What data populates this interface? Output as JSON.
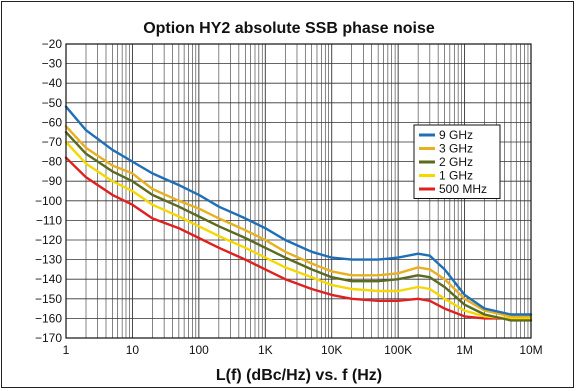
{
  "chart_data": {
    "type": "line",
    "title": "Option HY2 absolute SSB phase noise",
    "xlabel": "L(f) (dBc/Hz) vs. f (Hz)",
    "ylabel": "",
    "x_scale": "log",
    "xlim": [
      1,
      10000000
    ],
    "ylim": [
      -170,
      -20
    ],
    "grid": true,
    "legend_position": "right",
    "x_tick_values": [
      1,
      10,
      100,
      1000,
      10000,
      100000,
      1000000,
      10000000
    ],
    "x_tick_labels": [
      "1",
      "10",
      "100",
      "1K",
      "10K",
      "100K",
      "1M",
      "10M"
    ],
    "y_ticks": [
      -20,
      -30,
      -40,
      -50,
      -60,
      -70,
      -80,
      -90,
      -100,
      -110,
      -120,
      -130,
      -140,
      -150,
      -160,
      -170
    ],
    "x": [
      1,
      2,
      5,
      10,
      20,
      50,
      100,
      200,
      500,
      1000,
      2000,
      5000,
      10000,
      20000,
      50000,
      100000,
      200000,
      300000,
      500000,
      1000000,
      2000000,
      5000000,
      10000000
    ],
    "series": [
      {
        "name": "9 GHz",
        "color": "#1f6fb8",
        "values": [
          -52,
          -64,
          -74,
          -80,
          -86,
          -92,
          -97,
          -103,
          -109,
          -114,
          -120,
          -126,
          -129,
          -130,
          -130,
          -129,
          -127,
          -128,
          -135,
          -148,
          -155,
          -158,
          -158
        ]
      },
      {
        "name": "3 GHz",
        "color": "#e8b020",
        "values": [
          -62,
          -73,
          -82,
          -86,
          -94,
          -100,
          -104,
          -109,
          -115,
          -120,
          -126,
          -132,
          -136,
          -138,
          -138,
          -137,
          -134,
          -135,
          -140,
          -150,
          -156,
          -159,
          -159
        ]
      },
      {
        "name": "2 GHz",
        "color": "#5a6a1e",
        "values": [
          -65,
          -76,
          -85,
          -90,
          -97,
          -103,
          -108,
          -113,
          -119,
          -124,
          -129,
          -135,
          -139,
          -141,
          -141,
          -140,
          -138,
          -139,
          -144,
          -153,
          -158,
          -161,
          -161
        ]
      },
      {
        "name": "1 GHz",
        "color": "#f5d800",
        "values": [
          -70,
          -81,
          -90,
          -95,
          -102,
          -108,
          -113,
          -118,
          -124,
          -129,
          -134,
          -139,
          -143,
          -145,
          -146,
          -146,
          -144,
          -145,
          -150,
          -156,
          -159,
          -160,
          -160
        ]
      },
      {
        "name": "500 MHz",
        "color": "#e02020",
        "values": [
          -78,
          -88,
          -97,
          -102,
          -109,
          -114,
          -119,
          -124,
          -130,
          -135,
          -140,
          -145,
          -148,
          -150,
          -151,
          -151,
          -150,
          -151,
          -155,
          -159,
          -160,
          -160,
          -160
        ]
      }
    ]
  }
}
